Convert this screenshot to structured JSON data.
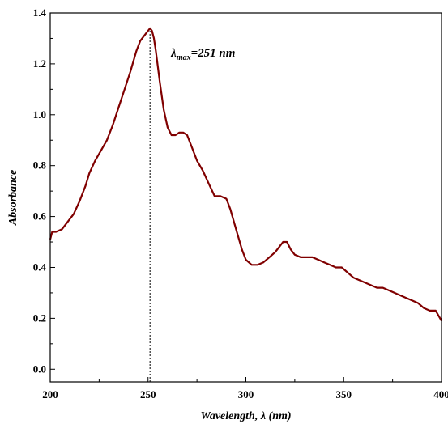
{
  "chart_data": {
    "type": "line",
    "title": "",
    "xlabel": "Wavelength, λ (nm)",
    "ylabel": "Absorbance",
    "xlim": [
      200,
      400
    ],
    "ylim": [
      -0.05,
      1.4
    ],
    "xticks": [
      200,
      250,
      300,
      350,
      400
    ],
    "xtick_labels": [
      "200",
      "250",
      "300",
      "350",
      "400"
    ],
    "yticks": [
      0.0,
      0.2,
      0.4,
      0.6,
      0.8,
      1.0,
      1.2,
      1.4
    ],
    "ytick_labels": [
      "0.0",
      "0.2",
      "0.4",
      "0.6",
      "0.8",
      "1.0",
      "1.2",
      "1.4"
    ],
    "grid": false,
    "line_color": "#800000",
    "annotation": {
      "prefix": "λ",
      "subscript": "max",
      "suffix": "=251 nm",
      "x": 251
    },
    "series": [
      {
        "x": [
          200,
          201,
          203,
          206,
          209,
          212,
          215,
          218,
          220,
          223,
          226,
          229,
          232,
          235,
          238,
          241,
          244,
          246,
          248,
          249,
          250,
          251,
          252,
          253,
          254,
          256,
          258,
          260,
          262,
          264,
          266,
          268,
          270,
          272,
          275,
          278,
          281,
          284,
          287,
          290,
          292,
          295,
          298,
          300,
          303,
          306,
          309,
          312,
          315,
          317,
          319,
          321,
          323,
          325,
          328,
          331,
          334,
          337,
          340,
          343,
          346,
          349,
          352,
          355,
          358,
          361,
          364,
          367,
          370,
          373,
          376,
          379,
          382,
          385,
          388,
          391,
          394,
          397,
          400
        ],
        "y": [
          0.51,
          0.54,
          0.54,
          0.55,
          0.58,
          0.61,
          0.66,
          0.72,
          0.77,
          0.82,
          0.86,
          0.9,
          0.96,
          1.03,
          1.1,
          1.17,
          1.25,
          1.29,
          1.31,
          1.32,
          1.33,
          1.34,
          1.33,
          1.3,
          1.25,
          1.13,
          1.02,
          0.95,
          0.92,
          0.92,
          0.93,
          0.93,
          0.92,
          0.88,
          0.82,
          0.78,
          0.73,
          0.68,
          0.68,
          0.67,
          0.63,
          0.55,
          0.47,
          0.43,
          0.41,
          0.41,
          0.42,
          0.44,
          0.46,
          0.48,
          0.5,
          0.5,
          0.47,
          0.45,
          0.44,
          0.44,
          0.44,
          0.43,
          0.42,
          0.41,
          0.4,
          0.4,
          0.38,
          0.36,
          0.35,
          0.34,
          0.33,
          0.32,
          0.32,
          0.31,
          0.3,
          0.29,
          0.28,
          0.27,
          0.26,
          0.24,
          0.23,
          0.23,
          0.19
        ]
      }
    ]
  }
}
